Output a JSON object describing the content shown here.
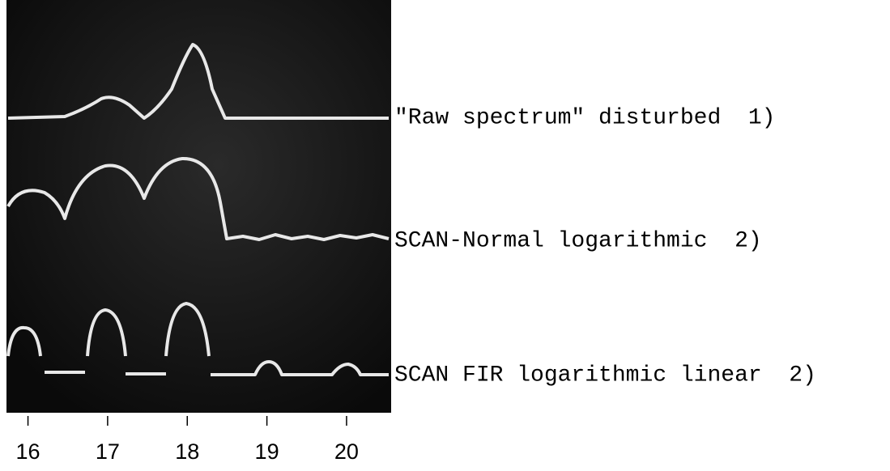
{
  "figure": {
    "traces": [
      {
        "label": "\"Raw spectrum\" disturbed  1)"
      },
      {
        "label": "SCAN-Normal logarithmic  2)"
      },
      {
        "label": "SCAN FIR logarithmic linear  2)"
      }
    ],
    "axis": {
      "range": [
        15.73,
        20.56
      ],
      "ticks": [
        16,
        17,
        18,
        19,
        20
      ]
    }
  }
}
